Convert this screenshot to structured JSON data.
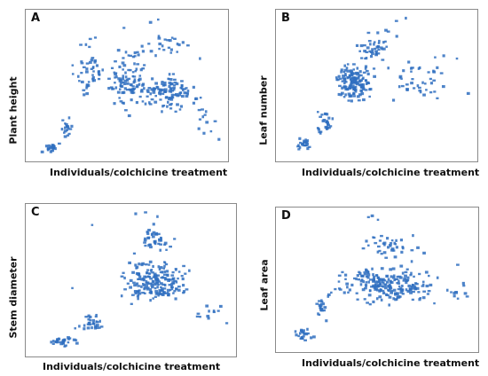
{
  "colors": {
    "marker": "#2f6fbf",
    "frame": "#8a8a8a"
  },
  "chart_data": [
    {
      "type": "scatter",
      "letter": "A",
      "xlabel": "Individuals/colchicine treatment",
      "ylabel": "Plant height",
      "grid": false,
      "legend": "none",
      "xlim": [
        0,
        100
      ],
      "ylim": [
        0,
        100
      ],
      "clusters": [
        {
          "x": [
            5,
            15
          ],
          "y": [
            2,
            10
          ],
          "n": 18
        },
        {
          "x": [
            12,
            22
          ],
          "y": [
            10,
            30
          ],
          "n": 18
        },
        {
          "x": [
            20,
            40
          ],
          "y": [
            35,
            90
          ],
          "n": 45
        },
        {
          "x": [
            35,
            65
          ],
          "y": [
            20,
            90
          ],
          "n": 90
        },
        {
          "x": [
            45,
            95
          ],
          "y": [
            30,
            65
          ],
          "n": 120
        },
        {
          "x": [
            55,
            85
          ],
          "y": [
            65,
            95
          ],
          "n": 22
        },
        {
          "x": [
            80,
            100
          ],
          "y": [
            10,
            40
          ],
          "n": 10
        }
      ],
      "x": [
        5,
        8,
        11,
        14,
        28,
        48,
        62,
        66,
        98,
        96,
        88
      ],
      "y": [
        3,
        5,
        7,
        9,
        80,
        92,
        96,
        98,
        12,
        25,
        70
      ]
    },
    {
      "type": "scatter",
      "letter": "B",
      "xlabel": "Individuals/colchicine treatment",
      "ylabel": "Leaf number",
      "grid": false,
      "legend": "none",
      "xlim": [
        0,
        100
      ],
      "ylim": [
        0,
        100
      ],
      "clusters": [
        {
          "x": [
            5,
            18
          ],
          "y": [
            2,
            15
          ],
          "n": 22
        },
        {
          "x": [
            15,
            28
          ],
          "y": [
            12,
            35
          ],
          "n": 28
        },
        {
          "x": [
            25,
            50
          ],
          "y": [
            35,
            70
          ],
          "n": 150
        },
        {
          "x": [
            35,
            60
          ],
          "y": [
            55,
            92
          ],
          "n": 35
        },
        {
          "x": [
            50,
            95
          ],
          "y": [
            30,
            75
          ],
          "n": 40
        },
        {
          "x": [
            40,
            70
          ],
          "y": [
            70,
            98
          ],
          "n": 12
        }
      ],
      "x": [
        98,
        92,
        85,
        60,
        65
      ],
      "y": [
        45,
        70,
        72,
        97,
        99
      ]
    },
    {
      "type": "scatter",
      "letter": "C",
      "xlabel": "Individuals/colchicine treatment",
      "ylabel": "Stem diameter",
      "grid": false,
      "legend": "none",
      "xlim": [
        0,
        100
      ],
      "ylim": [
        0,
        100
      ],
      "clusters": [
        {
          "x": [
            5,
            25
          ],
          "y": [
            2,
            12
          ],
          "n": 30
        },
        {
          "x": [
            20,
            40
          ],
          "y": [
            10,
            28
          ],
          "n": 30
        },
        {
          "x": [
            38,
            85
          ],
          "y": [
            30,
            70
          ],
          "n": 190
        },
        {
          "x": [
            50,
            75
          ],
          "y": [
            65,
            95
          ],
          "n": 40
        },
        {
          "x": [
            80,
            98
          ],
          "y": [
            15,
            40
          ],
          "n": 10
        }
      ],
      "x": [
        30,
        52,
        57,
        63,
        98,
        95,
        20
      ],
      "y": [
        90,
        98,
        99,
        96,
        20,
        32,
        45
      ]
    },
    {
      "type": "scatter",
      "letter": "D",
      "xlabel": "Individuals/colchicine treatment",
      "ylabel": "Leaf area",
      "grid": false,
      "legend": "none",
      "xlim": [
        0,
        100
      ],
      "ylim": [
        0,
        100
      ],
      "clusters": [
        {
          "x": [
            3,
            18
          ],
          "y": [
            3,
            15
          ],
          "n": 22
        },
        {
          "x": [
            15,
            25
          ],
          "y": [
            15,
            40
          ],
          "n": 18
        },
        {
          "x": [
            18,
            88
          ],
          "y": [
            30,
            65
          ],
          "n": 220
        },
        {
          "x": [
            30,
            80
          ],
          "y": [
            60,
            90
          ],
          "n": 40
        },
        {
          "x": [
            85,
            98
          ],
          "y": [
            30,
            50
          ],
          "n": 10
        }
      ],
      "x": [
        45,
        47,
        50,
        95,
        92
      ],
      "y": [
        98,
        99,
        96,
        48,
        62
      ]
    }
  ]
}
